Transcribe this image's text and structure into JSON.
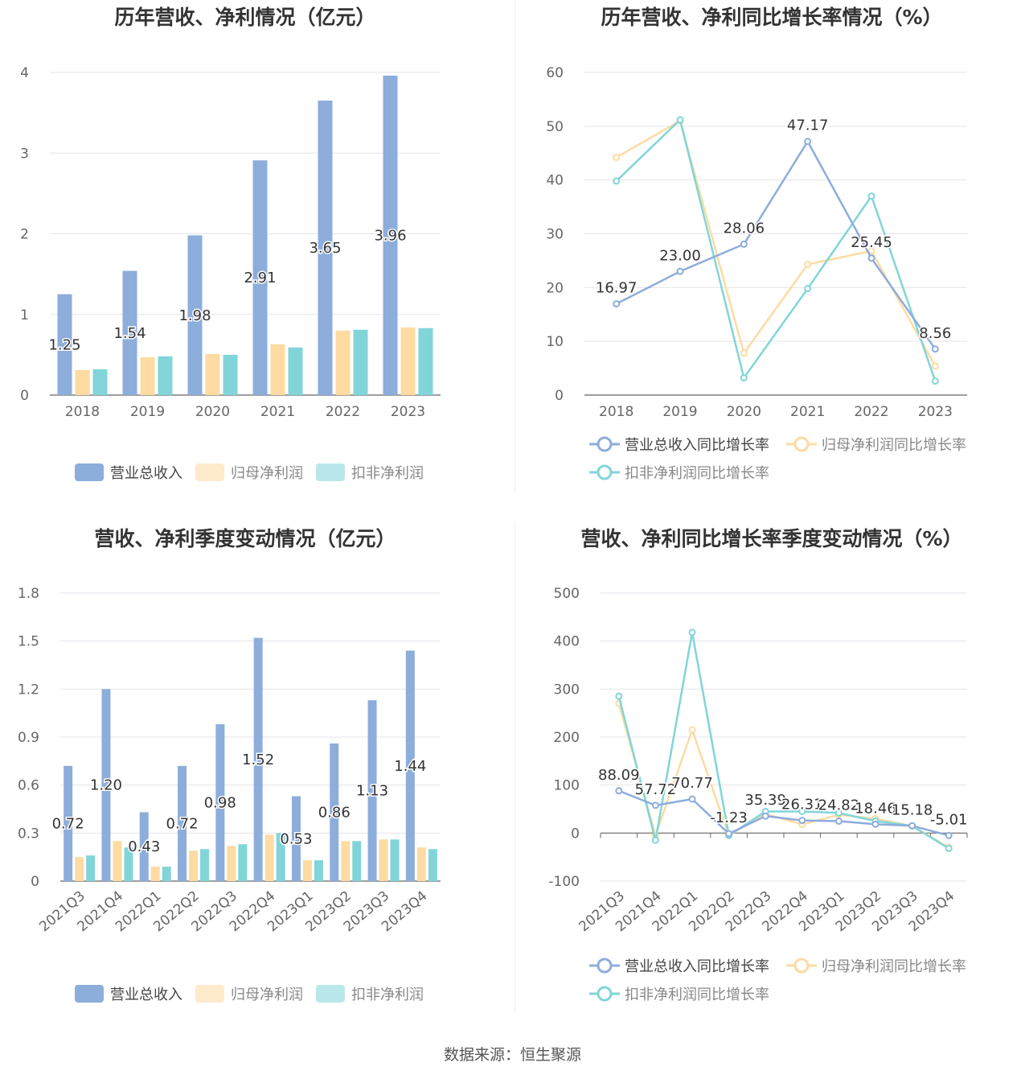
{
  "source_text": "数据来源：恒生聚源",
  "colors": {
    "revenue": "#8DADDB",
    "net_profit": "#FDDBA3",
    "deducted": "#81D5D9",
    "axis_text": "#666666",
    "title": "#333333",
    "grid": "#E4E4EC"
  },
  "chart_data": [
    {
      "type": "bar",
      "title": "历年营收、净利情况（亿元）",
      "categories": [
        "2018",
        "2019",
        "2020",
        "2021",
        "2022",
        "2023"
      ],
      "yticks": [
        "0",
        "1",
        "2",
        "3",
        "4"
      ],
      "ylim": [
        0,
        4
      ],
      "grid": true,
      "legend_position": "bottom",
      "series": [
        {
          "name": "营业总收入",
          "values": [
            1.25,
            1.54,
            1.98,
            2.91,
            3.65,
            3.96
          ],
          "labels": [
            "1.25",
            "1.54",
            "1.98",
            "2.91",
            "3.65",
            "3.96"
          ]
        },
        {
          "name": "归母净利润",
          "values": [
            0.31,
            0.47,
            0.51,
            0.63,
            0.8,
            0.84
          ]
        },
        {
          "name": "扣非净利润",
          "values": [
            0.32,
            0.48,
            0.5,
            0.59,
            0.81,
            0.83
          ]
        }
      ]
    },
    {
      "type": "line",
      "title": "历年营收、净利同比增长率情况（%）",
      "categories": [
        "2018",
        "2019",
        "2020",
        "2021",
        "2022",
        "2023"
      ],
      "yticks": [
        "0",
        "10",
        "20",
        "30",
        "40",
        "50",
        "60"
      ],
      "ylim": [
        0,
        60
      ],
      "grid": true,
      "legend_position": "bottom",
      "series": [
        {
          "name": "营业总收入同比增长率",
          "values": [
            16.97,
            23.0,
            28.06,
            47.17,
            25.45,
            8.56
          ],
          "labels": [
            "16.97",
            "23.00",
            "28.06",
            "47.17",
            "25.45",
            "8.56"
          ]
        },
        {
          "name": "归母净利润同比增长率",
          "values": [
            44.2,
            51.0,
            7.8,
            24.3,
            26.8,
            5.4
          ]
        },
        {
          "name": "扣非净利润同比增长率",
          "values": [
            39.8,
            51.2,
            3.2,
            19.8,
            37.0,
            2.6
          ]
        }
      ]
    },
    {
      "type": "bar",
      "title": "营收、净利季度变动情况（亿元）",
      "categories": [
        "2021Q3",
        "2021Q4",
        "2022Q1",
        "2022Q2",
        "2022Q3",
        "2022Q4",
        "2023Q1",
        "2023Q2",
        "2023Q3",
        "2023Q4"
      ],
      "yticks": [
        "0",
        "0.3",
        "0.6",
        "0.9",
        "1.2",
        "1.5",
        "1.8"
      ],
      "ylim": [
        0,
        1.8
      ],
      "grid": true,
      "legend_position": "bottom",
      "series": [
        {
          "name": "营业总收入",
          "values": [
            0.72,
            1.2,
            0.43,
            0.72,
            0.98,
            1.52,
            0.53,
            0.86,
            1.13,
            1.44
          ],
          "labels": [
            "0.72",
            "1.20",
            "0.43",
            "0.72",
            "0.98",
            "1.52",
            "0.53",
            "0.86",
            "1.13",
            "1.44"
          ]
        },
        {
          "name": "归母净利润",
          "values": [
            0.15,
            0.25,
            0.09,
            0.19,
            0.22,
            0.29,
            0.13,
            0.25,
            0.26,
            0.21
          ]
        },
        {
          "name": "扣非净利润",
          "values": [
            0.16,
            0.21,
            0.09,
            0.2,
            0.23,
            0.3,
            0.13,
            0.25,
            0.26,
            0.2
          ]
        }
      ]
    },
    {
      "type": "line",
      "title": "营收、净利同比增长率季度变动情况（%）",
      "categories": [
        "2021Q3",
        "2021Q4",
        "2022Q1",
        "2022Q2",
        "2022Q3",
        "2022Q4",
        "2023Q1",
        "2023Q2",
        "2023Q3",
        "2023Q4"
      ],
      "yticks": [
        "-100",
        "0",
        "100",
        "200",
        "300",
        "400",
        "500"
      ],
      "ylim": [
        -100,
        500
      ],
      "grid": true,
      "legend_position": "bottom",
      "series": [
        {
          "name": "营业总收入同比增长率",
          "values": [
            88.09,
            57.72,
            70.77,
            -1.23,
            35.39,
            26.31,
            24.82,
            18.46,
            15.18,
            -5.01
          ],
          "labels": [
            "88.09",
            "57.72",
            "70.77",
            "-1.23",
            "35.39",
            "26.31",
            "24.82",
            "18.46",
            "15.18",
            "-5.01"
          ]
        },
        {
          "name": "归母净利润同比增长率",
          "values": [
            270,
            -5,
            215,
            -5,
            40,
            18,
            38,
            30,
            15,
            -30
          ]
        },
        {
          "name": "扣非净利润同比增长率",
          "values": [
            285,
            -15,
            418,
            -5,
            45,
            45,
            42,
            25,
            15,
            -32
          ]
        }
      ]
    }
  ]
}
